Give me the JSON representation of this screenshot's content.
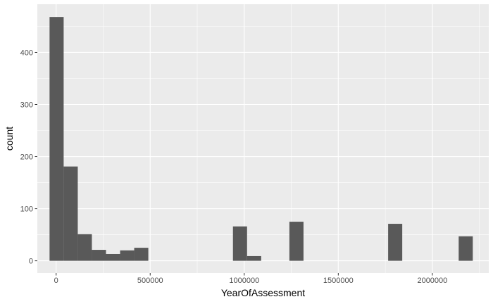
{
  "chart_data": {
    "type": "bar",
    "subtype": "histogram",
    "xlabel": "YearOfAssessment",
    "ylabel": "count",
    "xlim": [
      -100000,
      2300000
    ],
    "ylim": [
      -23.5,
      492.5
    ],
    "x_ticks": [
      0,
      500000,
      1000000,
      1500000,
      2000000
    ],
    "x_tick_labels": [
      "0",
      "500000",
      "1000000",
      "1500000",
      "2000000"
    ],
    "y_ticks": [
      0,
      100,
      200,
      300,
      400
    ],
    "y_tick_labels": [
      "0",
      "100",
      "200",
      "300",
      "400"
    ],
    "grid": true,
    "bin_width": 75000,
    "bins": [
      {
        "x0": -35000,
        "x1": 40000,
        "count": 468
      },
      {
        "x0": 40000,
        "x1": 115000,
        "count": 181
      },
      {
        "x0": 115000,
        "x1": 190000,
        "count": 51
      },
      {
        "x0": 190000,
        "x1": 265000,
        "count": 21
      },
      {
        "x0": 265000,
        "x1": 340000,
        "count": 13
      },
      {
        "x0": 340000,
        "x1": 415000,
        "count": 20
      },
      {
        "x0": 415000,
        "x1": 490000,
        "count": 25
      },
      {
        "x0": 490000,
        "x1": 565000,
        "count": 0
      },
      {
        "x0": 565000,
        "x1": 640000,
        "count": 0
      },
      {
        "x0": 640000,
        "x1": 715000,
        "count": 0
      },
      {
        "x0": 715000,
        "x1": 790000,
        "count": 0
      },
      {
        "x0": 790000,
        "x1": 865000,
        "count": 0
      },
      {
        "x0": 865000,
        "x1": 940000,
        "count": 0
      },
      {
        "x0": 940000,
        "x1": 1015000,
        "count": 66
      },
      {
        "x0": 1015000,
        "x1": 1090000,
        "count": 9
      },
      {
        "x0": 1090000,
        "x1": 1165000,
        "count": 0
      },
      {
        "x0": 1165000,
        "x1": 1240000,
        "count": 0
      },
      {
        "x0": 1240000,
        "x1": 1315000,
        "count": 75
      },
      {
        "x0": 1315000,
        "x1": 1390000,
        "count": 0
      },
      {
        "x0": 1390000,
        "x1": 1465000,
        "count": 0
      },
      {
        "x0": 1465000,
        "x1": 1540000,
        "count": 0
      },
      {
        "x0": 1540000,
        "x1": 1615000,
        "count": 0
      },
      {
        "x0": 1615000,
        "x1": 1690000,
        "count": 0
      },
      {
        "x0": 1690000,
        "x1": 1765000,
        "count": 0
      },
      {
        "x0": 1765000,
        "x1": 1840000,
        "count": 71
      },
      {
        "x0": 1840000,
        "x1": 1915000,
        "count": 0
      },
      {
        "x0": 1915000,
        "x1": 1990000,
        "count": 0
      },
      {
        "x0": 1990000,
        "x1": 2065000,
        "count": 0
      },
      {
        "x0": 2065000,
        "x1": 2140000,
        "count": 0
      },
      {
        "x0": 2140000,
        "x1": 2215000,
        "count": 47
      }
    ],
    "colors": {
      "panel_background": "#ebebeb",
      "grid_major": "#ffffff",
      "bar_fill": "#595959",
      "tick_text": "#4d4d4d",
      "title_text": "#000000"
    }
  }
}
